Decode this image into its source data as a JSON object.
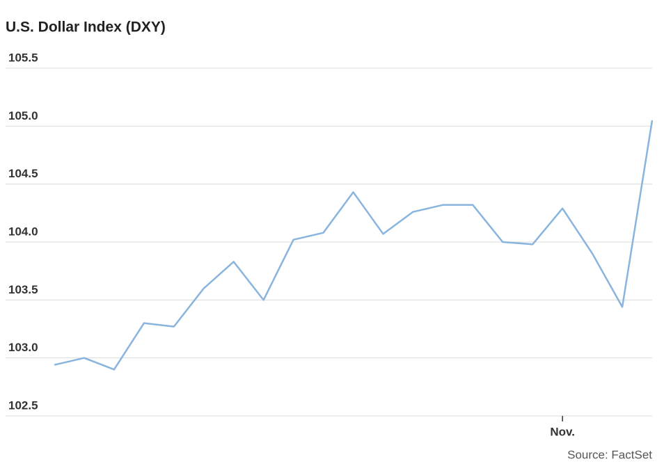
{
  "chart_data": {
    "type": "line",
    "title": "U.S. Dollar Index (DXY)",
    "source": "Source: FactSet",
    "categories": [
      null,
      null,
      null,
      null,
      null,
      null,
      null,
      null,
      null,
      null,
      null,
      null,
      null,
      null,
      null,
      null,
      null,
      "Nov.",
      null,
      null,
      null
    ],
    "values": [
      102.94,
      103.0,
      102.9,
      103.3,
      103.27,
      103.6,
      103.83,
      103.5,
      104.02,
      104.08,
      104.43,
      104.07,
      104.26,
      104.32,
      104.32,
      104.0,
      103.98,
      104.29,
      103.9,
      103.44,
      105.05
    ],
    "color": "#89b4de",
    "ylim": [
      102.5,
      105.5
    ],
    "yticks": [
      102.5,
      {
        "value": 103,
        "label": "103.0"
      },
      103.5,
      {
        "value": 104,
        "label": "104.0"
      },
      104.5,
      {
        "value": 105,
        "label": "105.0"
      },
      105.5
    ],
    "grid": true
  }
}
